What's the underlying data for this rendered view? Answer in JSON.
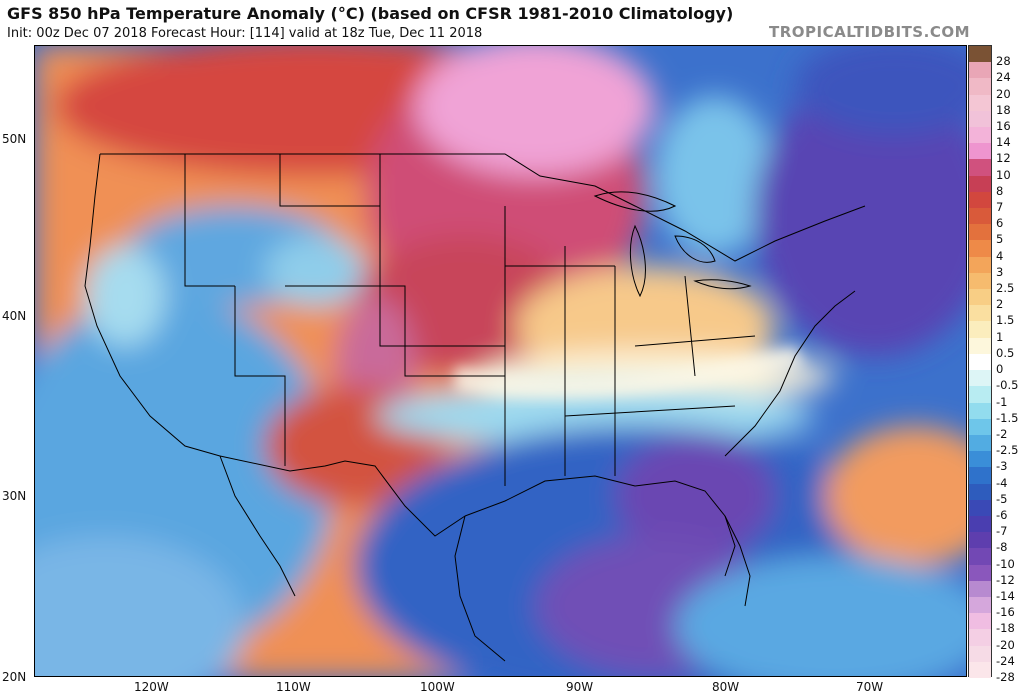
{
  "header": {
    "title": "GFS 850 hPa Temperature Anomaly (°C) (based on CFSR 1981-2010 Climatology)",
    "subtitle": "Init: 00z Dec 07 2018   Forecast Hour: [114]   valid at 18z Tue, Dec 11 2018",
    "brand": "TROPICALTIDBITS.COM"
  },
  "map": {
    "latitude_labels": [
      "50N",
      "40N",
      "30N",
      "20N"
    ],
    "longitude_labels": [
      "120W",
      "110W",
      "100W",
      "90W",
      "80W",
      "70W"
    ]
  },
  "legend": {
    "ticks": [
      "28",
      "24",
      "20",
      "18",
      "16",
      "14",
      "12",
      "10",
      "8",
      "7",
      "6",
      "5",
      "4",
      "3",
      "2.5",
      "2",
      "1.5",
      "1",
      "0.5",
      "0",
      "-0.5",
      "-1",
      "-1.5",
      "-2",
      "-2.5",
      "-3",
      "-4",
      "-5",
      "-6",
      "-7",
      "-8",
      "-10",
      "-12",
      "-14",
      "-16",
      "-18",
      "-20",
      "-24",
      "-28"
    ],
    "colors": [
      "#7a5234",
      "#e9a6b6",
      "#f0b9c6",
      "#f4c6d4",
      "#f1c2d9",
      "#f3b3d9",
      "#ee95cf",
      "#d0517e",
      "#c73f55",
      "#d2473e",
      "#d95a3a",
      "#e3713d",
      "#ee8a48",
      "#f3a55a",
      "#f6bb6e",
      "#f8ce85",
      "#fadfa0",
      "#fbedbd",
      "#fdf7dc",
      "#ffffff",
      "#ddf5f6",
      "#b8ecf2",
      "#92dcee",
      "#6ec6ea",
      "#52ace2",
      "#3a8ed8",
      "#2f72cb",
      "#2e5cbd",
      "#3a49b6",
      "#4a3eb0",
      "#5e3eae",
      "#7248b4",
      "#8a57bc",
      "#b78ad0",
      "#d5a7dc",
      "#f0bde2",
      "#f4cfe4",
      "#f6dbe6",
      "#fbe6ea"
    ]
  }
}
